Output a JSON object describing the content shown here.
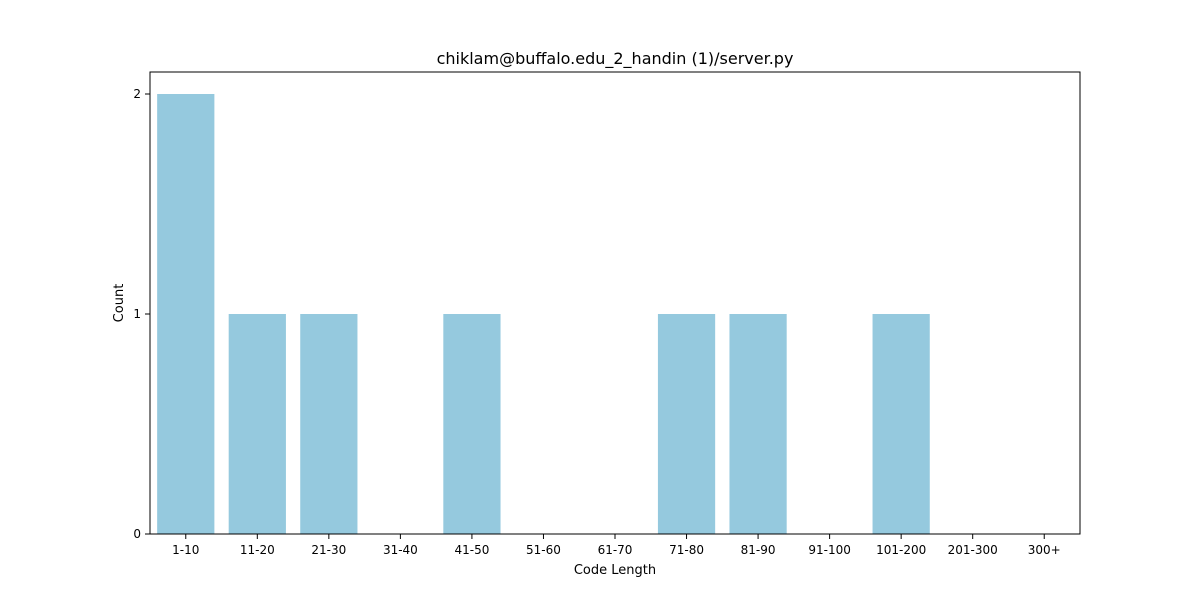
{
  "chart_data": {
    "type": "bar",
    "title": "chiklam@buffalo.edu_2_handin (1)/server.py",
    "xlabel": "Code Length",
    "ylabel": "Count",
    "categories": [
      "1-10",
      "11-20",
      "21-30",
      "31-40",
      "41-50",
      "51-60",
      "61-70",
      "71-80",
      "81-90",
      "91-100",
      "101-200",
      "201-300",
      "300+"
    ],
    "values": [
      2,
      1,
      1,
      0,
      1,
      0,
      0,
      1,
      1,
      0,
      1,
      0,
      0
    ],
    "ylim": [
      0,
      2.1
    ],
    "yticks": [
      0,
      1,
      2
    ],
    "bar_color": "#95c9de",
    "grid": false,
    "legend": "none"
  }
}
